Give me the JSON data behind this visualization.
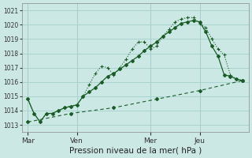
{
  "title": "Pression niveau de la mer( hPa )",
  "bg_color": "#cce8e4",
  "grid_color": "#a8d4ce",
  "line_color": "#1a5c28",
  "ylim": [
    1012.5,
    1021.5
  ],
  "yticks": [
    1013,
    1014,
    1015,
    1016,
    1017,
    1018,
    1019,
    1020,
    1021
  ],
  "xtick_labels": [
    "Mar",
    "Ven",
    "Mer",
    "Jeu"
  ],
  "xtick_positions": [
    0,
    8,
    20,
    28
  ],
  "vline_positions": [
    0,
    8,
    20,
    28
  ],
  "xlim": [
    -1,
    36
  ],
  "series1_x": [
    0,
    1,
    2,
    3,
    4,
    5,
    6,
    7,
    8,
    9,
    10,
    11,
    12,
    13,
    14,
    15,
    16,
    17,
    18,
    19,
    20,
    21,
    22,
    23,
    24,
    25,
    26,
    27,
    28,
    29,
    30,
    31,
    32,
    33,
    34,
    35
  ],
  "series1_y": [
    1014.8,
    1013.8,
    1013.2,
    1013.8,
    1013.8,
    1014.0,
    1014.2,
    1014.3,
    1014.4,
    1015.0,
    1015.8,
    1016.6,
    1017.1,
    1017.0,
    1016.5,
    1017.0,
    1017.6,
    1018.3,
    1018.8,
    1018.8,
    1018.3,
    1018.5,
    1019.2,
    1019.7,
    1020.2,
    1020.4,
    1020.5,
    1020.5,
    1020.1,
    1019.8,
    1019.0,
    1018.3,
    1017.9,
    1016.5,
    1016.2,
    1016.1
  ],
  "series2_x": [
    0,
    1,
    2,
    3,
    4,
    5,
    6,
    7,
    8,
    9,
    10,
    11,
    12,
    13,
    14,
    15,
    16,
    17,
    18,
    19,
    20,
    21,
    22,
    23,
    24,
    25,
    26,
    27,
    28,
    29,
    30,
    31,
    32,
    33,
    34,
    35
  ],
  "series2_y": [
    1014.8,
    1013.8,
    1013.2,
    1013.8,
    1013.8,
    1014.0,
    1014.2,
    1014.3,
    1014.4,
    1015.0,
    1015.3,
    1015.6,
    1016.0,
    1016.4,
    1016.6,
    1016.9,
    1017.2,
    1017.5,
    1017.8,
    1018.2,
    1018.5,
    1018.8,
    1019.2,
    1019.5,
    1019.8,
    1020.1,
    1020.2,
    1020.3,
    1020.2,
    1019.5,
    1018.5,
    1017.8,
    1016.5,
    1016.4,
    1016.2,
    1016.1
  ],
  "series3_x": [
    0,
    7,
    14,
    21,
    28,
    35
  ],
  "series3_y": [
    1013.2,
    1013.8,
    1014.2,
    1014.8,
    1015.4,
    1016.1
  ]
}
